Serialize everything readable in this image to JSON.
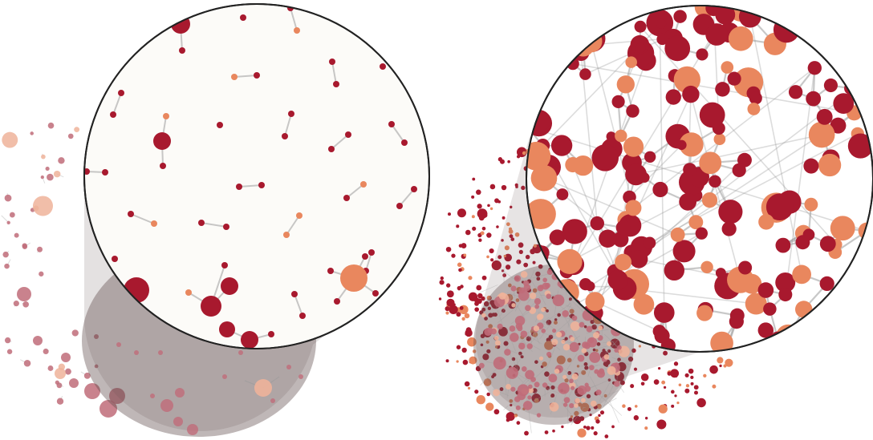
{
  "figure": {
    "description_text": "",
    "colors": {
      "dark_red": "#a8192e",
      "orange": "#e9875e",
      "faded_red": "#c06c79",
      "faded_orange": "#eeb39a",
      "edge": "#9a9a9a",
      "lens_fill": "#fcfbf8",
      "lens_outline": "#222222",
      "cone": "#6c5a5a"
    },
    "panels": [
      {
        "id": "sparse-network",
        "label": ""
      },
      {
        "id": "dense-network",
        "label": ""
      }
    ]
  }
}
